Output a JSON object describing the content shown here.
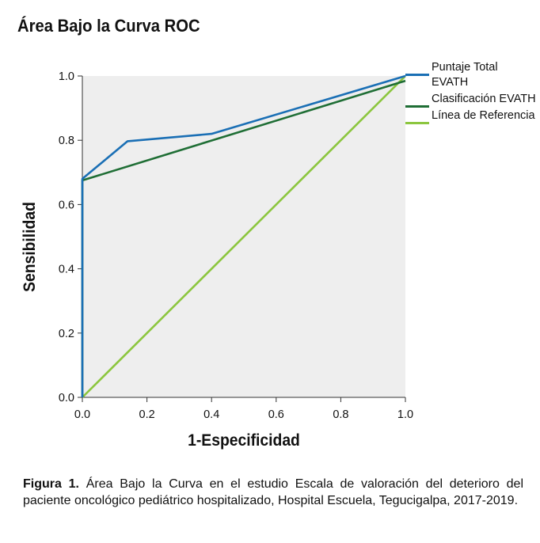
{
  "title": "Área Bajo la Curva ROC",
  "caption": {
    "label": "Figura 1.",
    "text": " Área Bajo la Curva en el estudio Escala de valoración del deterioro del paciente oncológico pediátrico hospitalizado, Hospital Escuela, Tegucigalpa, 2017-2019."
  },
  "chart_data": {
    "type": "line",
    "xlabel": "1-Especificidad",
    "ylabel": "Sensibilidad",
    "xlim": [
      0,
      1
    ],
    "ylim": [
      0,
      1
    ],
    "x_ticks": [
      "0.0",
      "0.2",
      "0.4",
      "0.6",
      "0.8",
      "1.0"
    ],
    "y_ticks": [
      "0.0",
      "0.2",
      "0.4",
      "0.6",
      "0.8",
      "1.0"
    ],
    "grid": false,
    "legend_position": "right",
    "series": [
      {
        "name": "Puntaje Total EVATH",
        "color": "#1a6fb5",
        "points": [
          [
            0,
            0
          ],
          [
            0,
            0.68
          ],
          [
            0.14,
            0.797
          ],
          [
            0.4,
            0.82
          ],
          [
            1.0,
            1.0
          ]
        ]
      },
      {
        "name": "Clasificación EVATH",
        "color": "#1f6e35",
        "points": [
          [
            0,
            0
          ],
          [
            0,
            0.675
          ],
          [
            1.0,
            0.985
          ]
        ]
      },
      {
        "name": "Línea de Referencia",
        "color": "#8cc63f",
        "points": [
          [
            0,
            0
          ],
          [
            1.0,
            1.0
          ]
        ]
      }
    ]
  }
}
